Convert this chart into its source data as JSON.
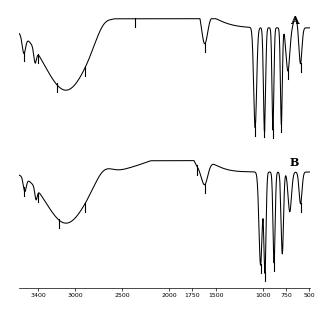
{
  "label_A": "A",
  "label_B": "B",
  "bg_color": "#ffffff",
  "line_color": "#000000",
  "x_tick_positions": [
    3400,
    3000,
    2500,
    2000,
    1750,
    1500,
    1000,
    750,
    500
  ],
  "x_tick_labels": [
    "3400",
    "3000",
    "2500",
    "2000",
    "1750",
    "1500",
    "1000",
    "750",
    "500"
  ],
  "ticksA": [
    3550,
    3400,
    3200,
    2900,
    2360,
    1620,
    1080,
    983,
    890,
    800,
    730,
    595
  ],
  "ticksB": [
    3550,
    3400,
    3170,
    2900,
    1700,
    1620,
    1022,
    975,
    878,
    595
  ]
}
